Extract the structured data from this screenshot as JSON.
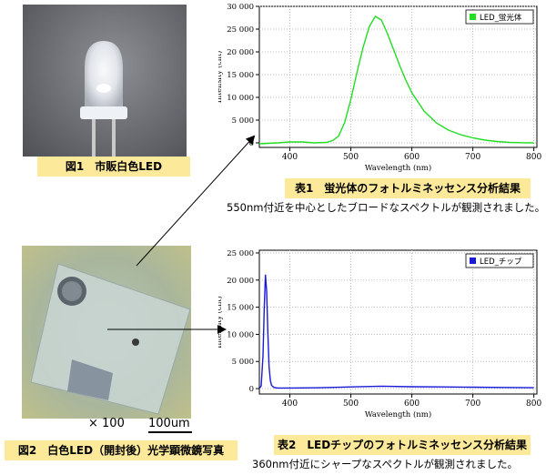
{
  "figures": {
    "fig1_caption": "図1　市販白色LED",
    "fig2_caption": "図2　白色LED（開封後）光学顕微鏡写真",
    "scale_mag": "× 100",
    "scale_bar": "100um"
  },
  "tables": {
    "table1_caption": "表1　蛍光体のフォトルミネッセンス分析結果",
    "table1_note": "550nm付近を中心としたブロードなスペクトルが観測されました。",
    "table2_caption": "表2　LEDチップのフォトルミネッセンス分析結果",
    "table2_note": "360nm付近にシャープなスペクトルが観測されました。"
  },
  "colors": {
    "caption_bg": "#fde99a",
    "series1": "#22dd22",
    "series2": "#1a1ad8"
  },
  "chart_data": [
    {
      "type": "line",
      "xlabel": "Wavelength (nm)",
      "ylabel": "Intensity (cnt)",
      "xlim": [
        350,
        805
      ],
      "ylim": [
        -1000,
        30000
      ],
      "xticks": [
        400,
        500,
        600,
        700,
        800
      ],
      "yticks": [
        0,
        5000,
        10000,
        15000,
        20000,
        25000,
        30000
      ],
      "ytick_labels": [
        "0",
        "5 000",
        "10 000",
        "15 000",
        "20 000",
        "25 000",
        "30 000"
      ],
      "legend_position": "top-right",
      "series": [
        {
          "name": "LED_蛍光体",
          "x": [
            350,
            380,
            400,
            420,
            440,
            460,
            470,
            480,
            490,
            500,
            510,
            520,
            530,
            540,
            550,
            560,
            570,
            580,
            590,
            600,
            620,
            640,
            660,
            680,
            700,
            720,
            740,
            760,
            780,
            800
          ],
          "y": [
            -200,
            0,
            200,
            200,
            0,
            100,
            500,
            1500,
            4500,
            9500,
            15500,
            21000,
            25500,
            27800,
            27000,
            24000,
            20500,
            17000,
            13800,
            11000,
            7000,
            4400,
            2800,
            1800,
            1100,
            600,
            300,
            100,
            50,
            0
          ]
        }
      ]
    },
    {
      "type": "line",
      "xlabel": "Wavelength (nm)",
      "ylabel": "Intensity (cnt)",
      "xlim": [
        350,
        805
      ],
      "ylim": [
        -1000,
        25500
      ],
      "xticks": [
        400,
        500,
        600,
        700,
        800
      ],
      "yticks": [
        0,
        5000,
        10000,
        15000,
        20000,
        25000
      ],
      "ytick_labels": [
        "0",
        "5 000",
        "10 000",
        "15 000",
        "20 000",
        "25 000"
      ],
      "legend_position": "top-right",
      "series": [
        {
          "name": "LED_チップ",
          "x": [
            350,
            353,
            356,
            358,
            360,
            362,
            364,
            366,
            368,
            370,
            374,
            380,
            400,
            450,
            500,
            550,
            600,
            650,
            700,
            750,
            800
          ],
          "y": [
            0,
            500,
            6000,
            15000,
            21000,
            18000,
            10000,
            4000,
            1500,
            600,
            200,
            100,
            100,
            150,
            300,
            450,
            350,
            300,
            250,
            200,
            150
          ]
        }
      ]
    }
  ]
}
